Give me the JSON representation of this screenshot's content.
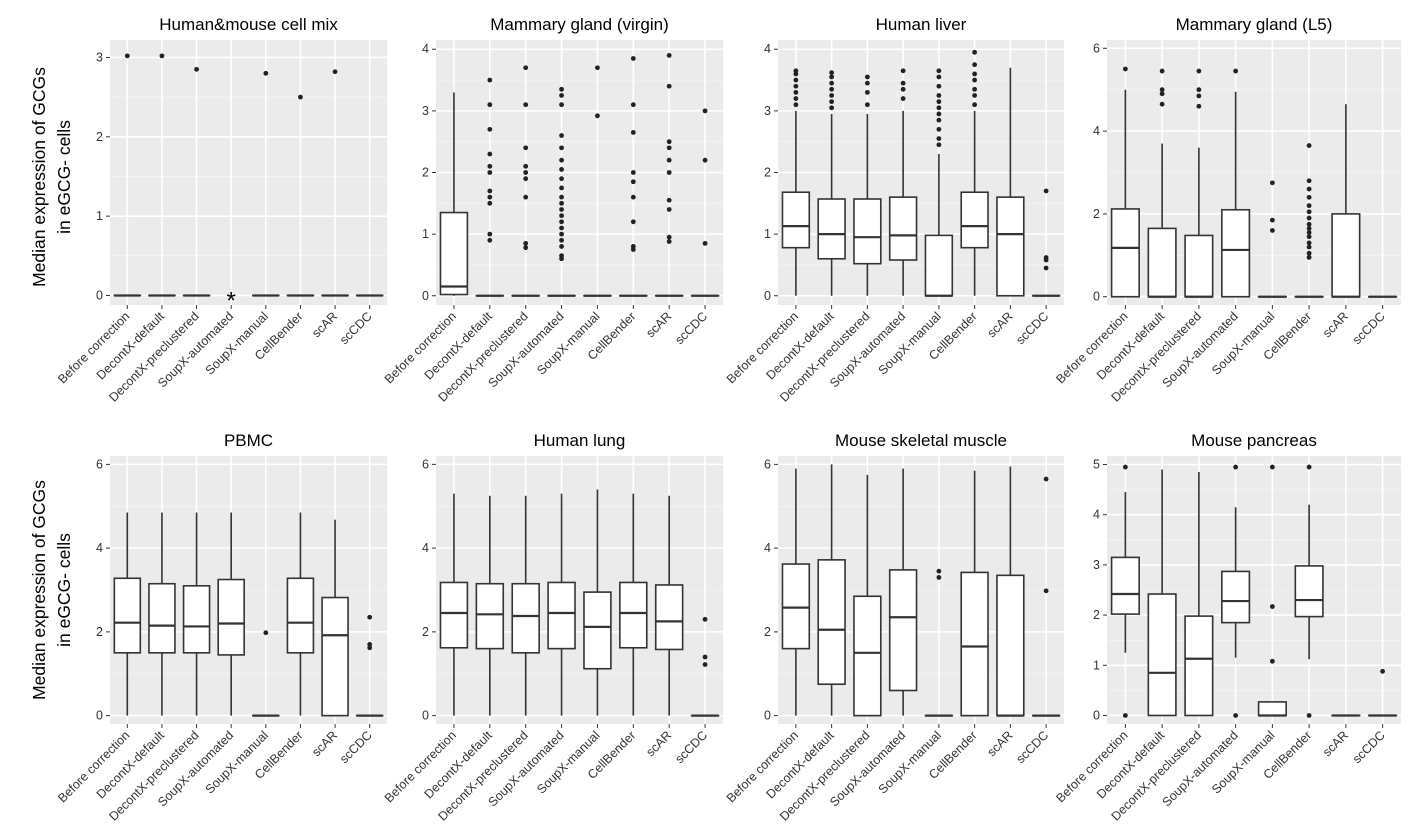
{
  "figure": {
    "ylabel_line1": "Median expression of GCGs",
    "ylabel_line2": "in eGCG- cells"
  },
  "chart_data": [
    {
      "type": "box",
      "title": "Human&mouse cell mix",
      "categories": [
        "Before correction",
        "DecontX-default",
        "DecontX-preclustered",
        "SoupX-automated",
        "SoupX-manual",
        "CellBender",
        "scAR",
        "scCDC"
      ],
      "ylim": [
        -0.12,
        3.22
      ],
      "yticks": [
        0,
        1,
        2,
        3
      ],
      "boxes": [
        {
          "min": 0,
          "q1": 0,
          "median": 0,
          "q3": 0,
          "max": 0,
          "outliers": [
            3.02
          ]
        },
        {
          "min": 0,
          "q1": 0,
          "median": 0,
          "q3": 0,
          "max": 0,
          "outliers": [
            3.02
          ]
        },
        {
          "min": 0,
          "q1": 0,
          "median": 0,
          "q3": 0,
          "max": 0,
          "outliers": [
            2.85
          ]
        },
        null,
        {
          "min": 0,
          "q1": 0,
          "median": 0,
          "q3": 0,
          "max": 0,
          "outliers": [
            2.8
          ]
        },
        {
          "min": 0,
          "q1": 0,
          "median": 0,
          "q3": 0,
          "max": 0,
          "outliers": [
            2.5
          ]
        },
        {
          "min": 0,
          "q1": 0,
          "median": 0,
          "q3": 0,
          "max": 0,
          "outliers": [
            2.82
          ]
        },
        {
          "min": 0,
          "q1": 0,
          "median": 0,
          "q3": 0,
          "max": 0,
          "outliers": []
        }
      ],
      "annotations": [
        {
          "category": "SoupX-automated",
          "y": 0,
          "text": "*"
        }
      ]
    },
    {
      "type": "box",
      "title": "Mammary gland (virgin)",
      "categories": [
        "Before correction",
        "DecontX-default",
        "DecontX-preclustered",
        "SoupX-automated",
        "SoupX-manual",
        "CellBender",
        "scAR",
        "scCDC"
      ],
      "ylim": [
        -0.15,
        4.15
      ],
      "yticks": [
        0,
        1,
        2,
        3,
        4
      ],
      "boxes": [
        {
          "min": 0,
          "q1": 0.02,
          "median": 0.15,
          "q3": 1.35,
          "max": 3.3,
          "outliers": []
        },
        {
          "min": 0,
          "q1": 0,
          "median": 0,
          "q3": 0,
          "max": 0,
          "outliers": [
            0.9,
            1.0,
            1.5,
            1.6,
            1.7,
            2.0,
            2.1,
            2.3,
            2.7,
            3.1,
            3.5
          ]
        },
        {
          "min": 0,
          "q1": 0,
          "median": 0,
          "q3": 0,
          "max": 0,
          "outliers": [
            0.78,
            0.85,
            1.6,
            1.9,
            2.0,
            2.1,
            2.4,
            3.1,
            3.7
          ]
        },
        {
          "min": 0,
          "q1": 0,
          "median": 0,
          "q3": 0,
          "max": 0,
          "outliers": [
            0.6,
            0.65,
            0.8,
            0.9,
            1.0,
            1.1,
            1.2,
            1.3,
            1.4,
            1.5,
            1.6,
            1.75,
            1.9,
            2.05,
            2.2,
            2.4,
            2.6,
            3.1,
            3.25,
            3.35
          ]
        },
        {
          "min": 0,
          "q1": 0,
          "median": 0,
          "q3": 0,
          "max": 0,
          "outliers": [
            2.92,
            3.7
          ]
        },
        {
          "min": 0,
          "q1": 0,
          "median": 0,
          "q3": 0,
          "max": 0,
          "outliers": [
            0.75,
            0.8,
            1.2,
            1.6,
            1.85,
            2.0,
            2.65,
            3.1,
            3.85
          ]
        },
        {
          "min": 0,
          "q1": 0,
          "median": 0,
          "q3": 0,
          "max": 0,
          "outliers": [
            0.88,
            0.95,
            1.4,
            1.55,
            2.0,
            2.2,
            2.4,
            2.5,
            3.4,
            3.9
          ]
        },
        {
          "min": 0,
          "q1": 0,
          "median": 0,
          "q3": 0,
          "max": 0,
          "outliers": [
            0.85,
            2.2,
            3.0
          ]
        }
      ]
    },
    {
      "type": "box",
      "title": "Human liver",
      "categories": [
        "Before correction",
        "DecontX-default",
        "DecontX-preclustered",
        "SoupX-automated",
        "SoupX-manual",
        "CellBender",
        "scAR",
        "scCDC"
      ],
      "ylim": [
        -0.15,
        4.15
      ],
      "yticks": [
        0,
        1,
        2,
        3,
        4
      ],
      "boxes": [
        {
          "min": 0,
          "q1": 0.78,
          "median": 1.13,
          "q3": 1.68,
          "max": 3.0,
          "outliers": [
            3.1,
            3.2,
            3.3,
            3.4,
            3.5,
            3.6,
            3.65
          ]
        },
        {
          "min": 0,
          "q1": 0.6,
          "median": 1.0,
          "q3": 1.57,
          "max": 2.95,
          "outliers": [
            3.05,
            3.15,
            3.25,
            3.35,
            3.45,
            3.55,
            3.62
          ]
        },
        {
          "min": 0,
          "q1": 0.52,
          "median": 0.95,
          "q3": 1.57,
          "max": 2.95,
          "outliers": [
            3.1,
            3.3,
            3.45,
            3.55
          ]
        },
        {
          "min": 0,
          "q1": 0.58,
          "median": 0.98,
          "q3": 1.6,
          "max": 3.0,
          "outliers": [
            3.2,
            3.35,
            3.45,
            3.65
          ]
        },
        {
          "min": 0,
          "q1": 0,
          "median": 0,
          "q3": 0.98,
          "max": 2.3,
          "outliers": [
            2.45,
            2.55,
            2.7,
            2.85,
            2.95,
            3.05,
            3.15,
            3.25,
            3.4,
            3.55,
            3.65
          ]
        },
        {
          "min": 0,
          "q1": 0.78,
          "median": 1.13,
          "q3": 1.68,
          "max": 3.0,
          "outliers": [
            3.1,
            3.25,
            3.35,
            3.5,
            3.6,
            3.75,
            3.95
          ]
        },
        {
          "min": 0,
          "q1": 0,
          "median": 1.0,
          "q3": 1.6,
          "max": 3.7,
          "outliers": []
        },
        {
          "min": 0,
          "q1": 0,
          "median": 0,
          "q3": 0,
          "max": 0,
          "outliers": [
            0.45,
            0.58,
            0.62,
            1.7
          ]
        }
      ]
    },
    {
      "type": "box",
      "title": "Mammary gland (L5)",
      "categories": [
        "Before correction",
        "DecontX-default",
        "DecontX-preclustered",
        "SoupX-automated",
        "SoupX-manual",
        "CellBender",
        "scAR",
        "scCDC"
      ],
      "ylim": [
        -0.2,
        6.2
      ],
      "yticks": [
        0,
        2,
        4,
        6
      ],
      "boxes": [
        {
          "min": 0,
          "q1": 0,
          "median": 1.18,
          "q3": 2.12,
          "max": 5.0,
          "outliers": [
            5.5
          ]
        },
        {
          "min": 0,
          "q1": 0,
          "median": 0,
          "q3": 1.65,
          "max": 3.7,
          "outliers": [
            4.65,
            4.9,
            5.0,
            5.45
          ]
        },
        {
          "min": 0,
          "q1": 0,
          "median": 0,
          "q3": 1.48,
          "max": 3.6,
          "outliers": [
            4.6,
            4.85,
            5.0,
            5.45
          ]
        },
        {
          "min": 0,
          "q1": 0,
          "median": 1.13,
          "q3": 2.1,
          "max": 4.95,
          "outliers": [
            5.45
          ]
        },
        {
          "min": 0,
          "q1": 0,
          "median": 0,
          "q3": 0,
          "max": 0,
          "outliers": [
            1.6,
            1.85,
            2.75
          ]
        },
        {
          "min": 0,
          "q1": 0,
          "median": 0,
          "q3": 0,
          "max": 0,
          "outliers": [
            0.95,
            1.05,
            1.2,
            1.3,
            1.45,
            1.55,
            1.65,
            1.75,
            1.9,
            2.05,
            2.2,
            2.4,
            2.6,
            2.8,
            3.65
          ]
        },
        {
          "min": 0,
          "q1": 0,
          "median": 0,
          "q3": 2.0,
          "max": 4.65,
          "outliers": []
        },
        {
          "min": 0,
          "q1": 0,
          "median": 0,
          "q3": 0,
          "max": 0,
          "outliers": []
        }
      ]
    },
    {
      "type": "box",
      "title": "PBMC",
      "categories": [
        "Before correction",
        "DecontX-default",
        "DecontX-preclustered",
        "SoupX-automated",
        "SoupX-manual",
        "CellBender",
        "scAR",
        "scCDC"
      ],
      "ylim": [
        -0.2,
        6.2
      ],
      "yticks": [
        0,
        2,
        4,
        6
      ],
      "boxes": [
        {
          "min": 0,
          "q1": 1.5,
          "median": 2.22,
          "q3": 3.28,
          "max": 4.85,
          "outliers": []
        },
        {
          "min": 0,
          "q1": 1.5,
          "median": 2.15,
          "q3": 3.15,
          "max": 4.85,
          "outliers": []
        },
        {
          "min": 0,
          "q1": 1.5,
          "median": 2.13,
          "q3": 3.1,
          "max": 4.85,
          "outliers": []
        },
        {
          "min": 0,
          "q1": 1.45,
          "median": 2.2,
          "q3": 3.25,
          "max": 4.85,
          "outliers": []
        },
        {
          "min": 0,
          "q1": 0,
          "median": 0,
          "q3": 0,
          "max": 0,
          "outliers": [
            1.98
          ]
        },
        {
          "min": 0,
          "q1": 1.5,
          "median": 2.22,
          "q3": 3.28,
          "max": 4.85,
          "outliers": []
        },
        {
          "min": 0,
          "q1": 0,
          "median": 1.92,
          "q3": 2.82,
          "max": 4.68,
          "outliers": []
        },
        {
          "min": 0,
          "q1": 0,
          "median": 0,
          "q3": 0,
          "max": 0,
          "outliers": [
            1.62,
            1.7,
            2.35
          ]
        }
      ]
    },
    {
      "type": "box",
      "title": "Human lung",
      "categories": [
        "Before correction",
        "DecontX-default",
        "DecontX-preclustered",
        "SoupX-automated",
        "SoupX-manual",
        "CellBender",
        "scAR",
        "scCDC"
      ],
      "ylim": [
        -0.2,
        6.2
      ],
      "yticks": [
        0,
        2,
        4,
        6
      ],
      "boxes": [
        {
          "min": 0,
          "q1": 1.62,
          "median": 2.45,
          "q3": 3.18,
          "max": 5.3,
          "outliers": []
        },
        {
          "min": 0,
          "q1": 1.6,
          "median": 2.42,
          "q3": 3.15,
          "max": 5.25,
          "outliers": []
        },
        {
          "min": 0,
          "q1": 1.5,
          "median": 2.38,
          "q3": 3.15,
          "max": 5.25,
          "outliers": []
        },
        {
          "min": 0,
          "q1": 1.6,
          "median": 2.45,
          "q3": 3.18,
          "max": 5.3,
          "outliers": []
        },
        {
          "min": 0,
          "q1": 1.12,
          "median": 2.12,
          "q3": 2.95,
          "max": 5.4,
          "outliers": []
        },
        {
          "min": 0,
          "q1": 1.62,
          "median": 2.45,
          "q3": 3.18,
          "max": 5.3,
          "outliers": []
        },
        {
          "min": 0,
          "q1": 1.58,
          "median": 2.25,
          "q3": 3.12,
          "max": 5.25,
          "outliers": []
        },
        {
          "min": 0,
          "q1": 0,
          "median": 0,
          "q3": 0,
          "max": 0,
          "outliers": [
            1.22,
            1.4,
            2.3
          ]
        }
      ]
    },
    {
      "type": "box",
      "title": "Mouse skeletal muscle",
      "categories": [
        "Before correction",
        "DecontX-default",
        "DecontX-preclustered",
        "SoupX-automated",
        "SoupX-manual",
        "CellBender",
        "scAR",
        "scCDC"
      ],
      "ylim": [
        -0.2,
        6.2
      ],
      "yticks": [
        0,
        2,
        4,
        6
      ],
      "boxes": [
        {
          "min": 0,
          "q1": 1.6,
          "median": 2.58,
          "q3": 3.62,
          "max": 5.9,
          "outliers": []
        },
        {
          "min": 0,
          "q1": 0.75,
          "median": 2.05,
          "q3": 3.72,
          "max": 6.0,
          "outliers": []
        },
        {
          "min": 0,
          "q1": 0,
          "median": 1.5,
          "q3": 2.85,
          "max": 5.75,
          "outliers": []
        },
        {
          "min": 0,
          "q1": 0.6,
          "median": 2.35,
          "q3": 3.48,
          "max": 5.9,
          "outliers": []
        },
        {
          "min": 0,
          "q1": 0,
          "median": 0,
          "q3": 0,
          "max": 0,
          "outliers": [
            3.3,
            3.45
          ]
        },
        {
          "min": 0,
          "q1": 0,
          "median": 1.65,
          "q3": 3.42,
          "max": 5.85,
          "outliers": []
        },
        {
          "min": 0,
          "q1": 0,
          "median": 0,
          "q3": 3.35,
          "max": 5.95,
          "outliers": []
        },
        {
          "min": 0,
          "q1": 0,
          "median": 0,
          "q3": 0,
          "max": 0,
          "outliers": [
            2.98,
            5.65
          ]
        }
      ]
    },
    {
      "type": "box",
      "title": "Mouse pancreas",
      "categories": [
        "Before correction",
        "DecontX-default",
        "DecontX-preclustered",
        "SoupX-automated",
        "SoupX-manual",
        "CellBender",
        "scAR",
        "scCDC"
      ],
      "ylim": [
        -0.17,
        5.17
      ],
      "yticks": [
        0,
        1,
        2,
        3,
        4,
        5
      ],
      "boxes": [
        {
          "min": 1.25,
          "q1": 2.02,
          "median": 2.42,
          "q3": 3.15,
          "max": 4.45,
          "outliers": [
            0,
            4.95
          ]
        },
        {
          "min": 0,
          "q1": 0,
          "median": 0.85,
          "q3": 2.42,
          "max": 4.9,
          "outliers": []
        },
        {
          "min": 0,
          "q1": 0,
          "median": 1.13,
          "q3": 1.98,
          "max": 4.85,
          "outliers": []
        },
        {
          "min": 1.15,
          "q1": 1.85,
          "median": 2.28,
          "q3": 2.87,
          "max": 4.15,
          "outliers": [
            0,
            4.95
          ]
        },
        {
          "min": 0,
          "q1": 0,
          "median": 0,
          "q3": 0.27,
          "max": 0.27,
          "outliers": [
            1.08,
            2.17,
            4.95
          ]
        },
        {
          "min": 1.12,
          "q1": 1.97,
          "median": 2.3,
          "q3": 2.98,
          "max": 4.2,
          "outliers": [
            0,
            4.95
          ]
        },
        {
          "min": 0,
          "q1": 0,
          "median": 0,
          "q3": 0,
          "max": 0,
          "outliers": []
        },
        {
          "min": 0,
          "q1": 0,
          "median": 0,
          "q3": 0,
          "max": 0,
          "outliers": [
            0.88
          ]
        }
      ]
    }
  ]
}
